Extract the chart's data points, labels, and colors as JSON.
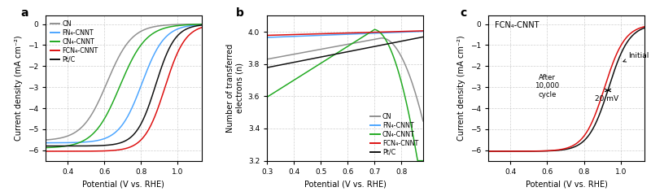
{
  "fig_width": 8.0,
  "fig_height": 2.41,
  "dpi": 100,
  "background": "#ffffff",
  "panel_a": {
    "label": "a",
    "xlabel": "Potential (V vs. RHE)",
    "ylabel": "Current density (mA cm⁻²)",
    "xlim": [
      0.28,
      1.13
    ],
    "ylim": [
      -6.5,
      0.4
    ],
    "yticks": [
      0,
      -1,
      -2,
      -3,
      -4,
      -5,
      -6
    ],
    "xticks": [
      0.4,
      0.6,
      0.8,
      1.0
    ],
    "legend": [
      "CN",
      "FN₄-CNNT",
      "CN₄-CNNT",
      "FCN₄-CNNT",
      "Pt/C"
    ]
  },
  "panel_b": {
    "label": "b",
    "xlabel": "Potential (V vs. RHE)",
    "ylabel": "Number of transferred\nelectrons (n)",
    "xlim": [
      0.3,
      0.88
    ],
    "ylim": [
      3.2,
      4.1
    ],
    "yticks": [
      3.2,
      3.4,
      3.6,
      3.8,
      4.0
    ],
    "xticks": [
      0.3,
      0.4,
      0.5,
      0.6,
      0.7,
      0.8
    ],
    "legend": [
      "CN",
      "FN₄-CNNT",
      "CN₄-CNNT",
      "FCN₄-CNNT",
      "Pt/C"
    ]
  },
  "panel_c": {
    "label": "c",
    "xlabel": "Potential (V vs. RHE)",
    "ylabel": "Current density (mA cm⁻²)",
    "xlim": [
      0.28,
      1.13
    ],
    "ylim": [
      -6.5,
      0.4
    ],
    "yticks": [
      0,
      -1,
      -2,
      -3,
      -4,
      -5,
      -6
    ],
    "xticks": [
      0.4,
      0.6,
      0.8,
      1.0
    ],
    "title_box": "FCN₄-CNNT",
    "annotation_text1": "After\n10,000\ncycle",
    "annotation_text2": "20 mV",
    "initial_label": "Initial",
    "lim": -6.05
  },
  "colors": {
    "CN": "#909090",
    "FN4": "#4da6ff",
    "CN4": "#22aa22",
    "FCN4": "#dd1111",
    "PtC": "#111111"
  }
}
